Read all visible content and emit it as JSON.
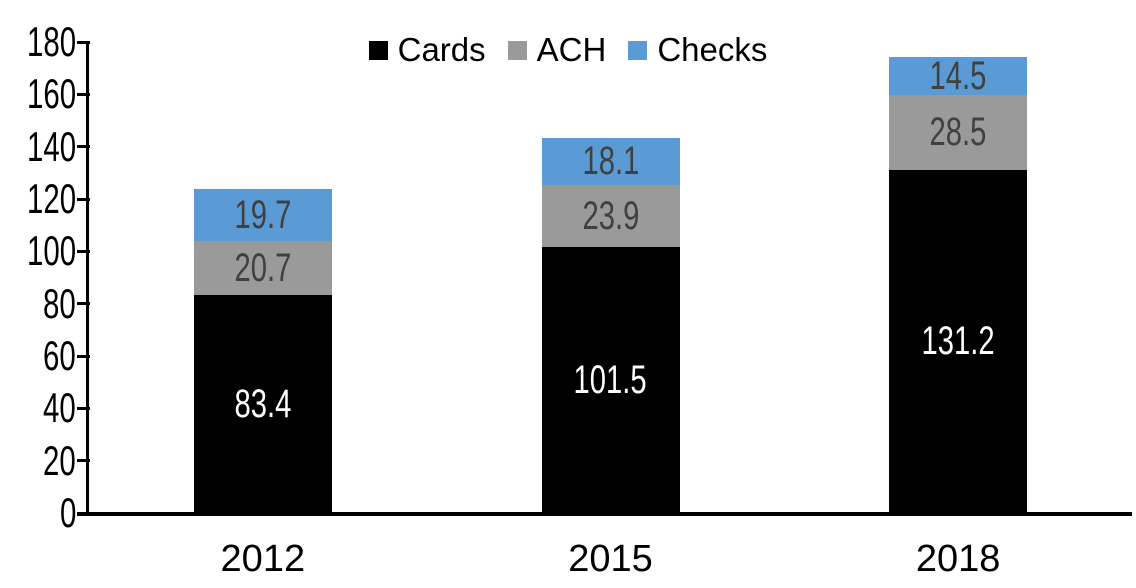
{
  "chart_data": {
    "type": "bar",
    "stacked": true,
    "title": "",
    "xlabel": "",
    "ylabel": "",
    "categories": [
      "2012",
      "2015",
      "2018"
    ],
    "series": [
      {
        "name": "Cards",
        "values": [
          83.4,
          101.5,
          131.2
        ],
        "color": "#000000",
        "label_color": "#FFFFFF"
      },
      {
        "name": "ACH",
        "values": [
          20.7,
          23.9,
          28.5
        ],
        "color": "#9A9A9A",
        "label_color": "#404040"
      },
      {
        "name": "Checks",
        "values": [
          19.7,
          18.1,
          14.5
        ],
        "color": "#5B9BD5",
        "label_color": "#404040"
      }
    ],
    "totals": [
      123.8,
      143.5,
      174.2
    ],
    "ylim": [
      0,
      180
    ],
    "ytick_step": 20,
    "ytick_labels": [
      "0",
      "20",
      "40",
      "60",
      "80",
      "100",
      "120",
      "140",
      "160",
      "180"
    ],
    "legend_position": "top",
    "grid": false,
    "axis_color": "#000000",
    "background_color": "#FFFFFF"
  }
}
